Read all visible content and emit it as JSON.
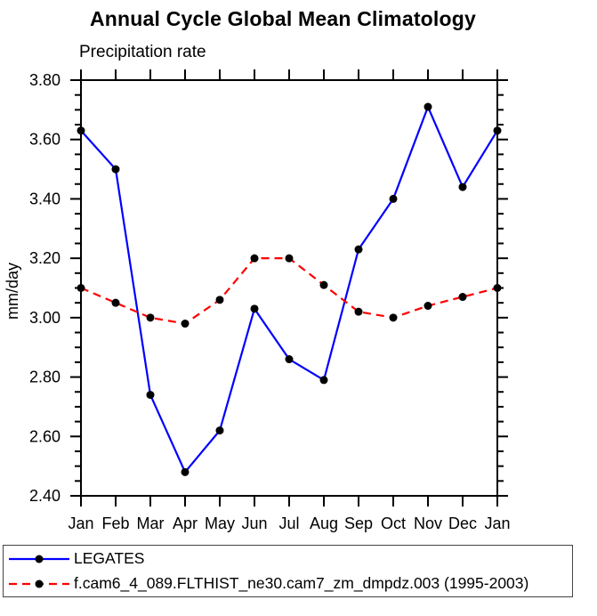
{
  "chart_data": {
    "type": "line",
    "title": "Annual Cycle Global Mean Climatology",
    "subtitle": "Precipitation rate",
    "ylabel": "mm/day",
    "x_categories": [
      "Jan",
      "Feb",
      "Mar",
      "Apr",
      "May",
      "Jun",
      "Jul",
      "Aug",
      "Sep",
      "Oct",
      "Nov",
      "Dec",
      "Jan"
    ],
    "ylim": [
      2.4,
      3.8
    ],
    "y_major_step": 0.2,
    "y_minor_step": 0.05,
    "y_tick_labels": [
      "2.40",
      "2.60",
      "2.80",
      "3.00",
      "3.20",
      "3.40",
      "3.60",
      "3.80"
    ],
    "grid": false,
    "legend_position": "bottom-left",
    "axis_color": "#000000",
    "marker_color": "#000000",
    "series": [
      {
        "name": "LEGATES",
        "color": "#0000ff",
        "style": "solid",
        "dash": "none",
        "values": [
          3.63,
          3.5,
          2.74,
          2.48,
          2.62,
          3.03,
          2.86,
          2.79,
          3.23,
          3.4,
          3.71,
          3.44,
          3.63
        ]
      },
      {
        "name": "f.cam6_4_089.FLTHIST_ne30.cam7_zm_dmpdz.003 (1995-2003)",
        "color": "#ff0000",
        "style": "dashed",
        "dash": "9,6",
        "values": [
          3.1,
          3.05,
          3.0,
          2.98,
          3.06,
          3.2,
          3.2,
          3.11,
          3.02,
          3.0,
          3.04,
          3.07,
          3.1
        ]
      }
    ]
  }
}
